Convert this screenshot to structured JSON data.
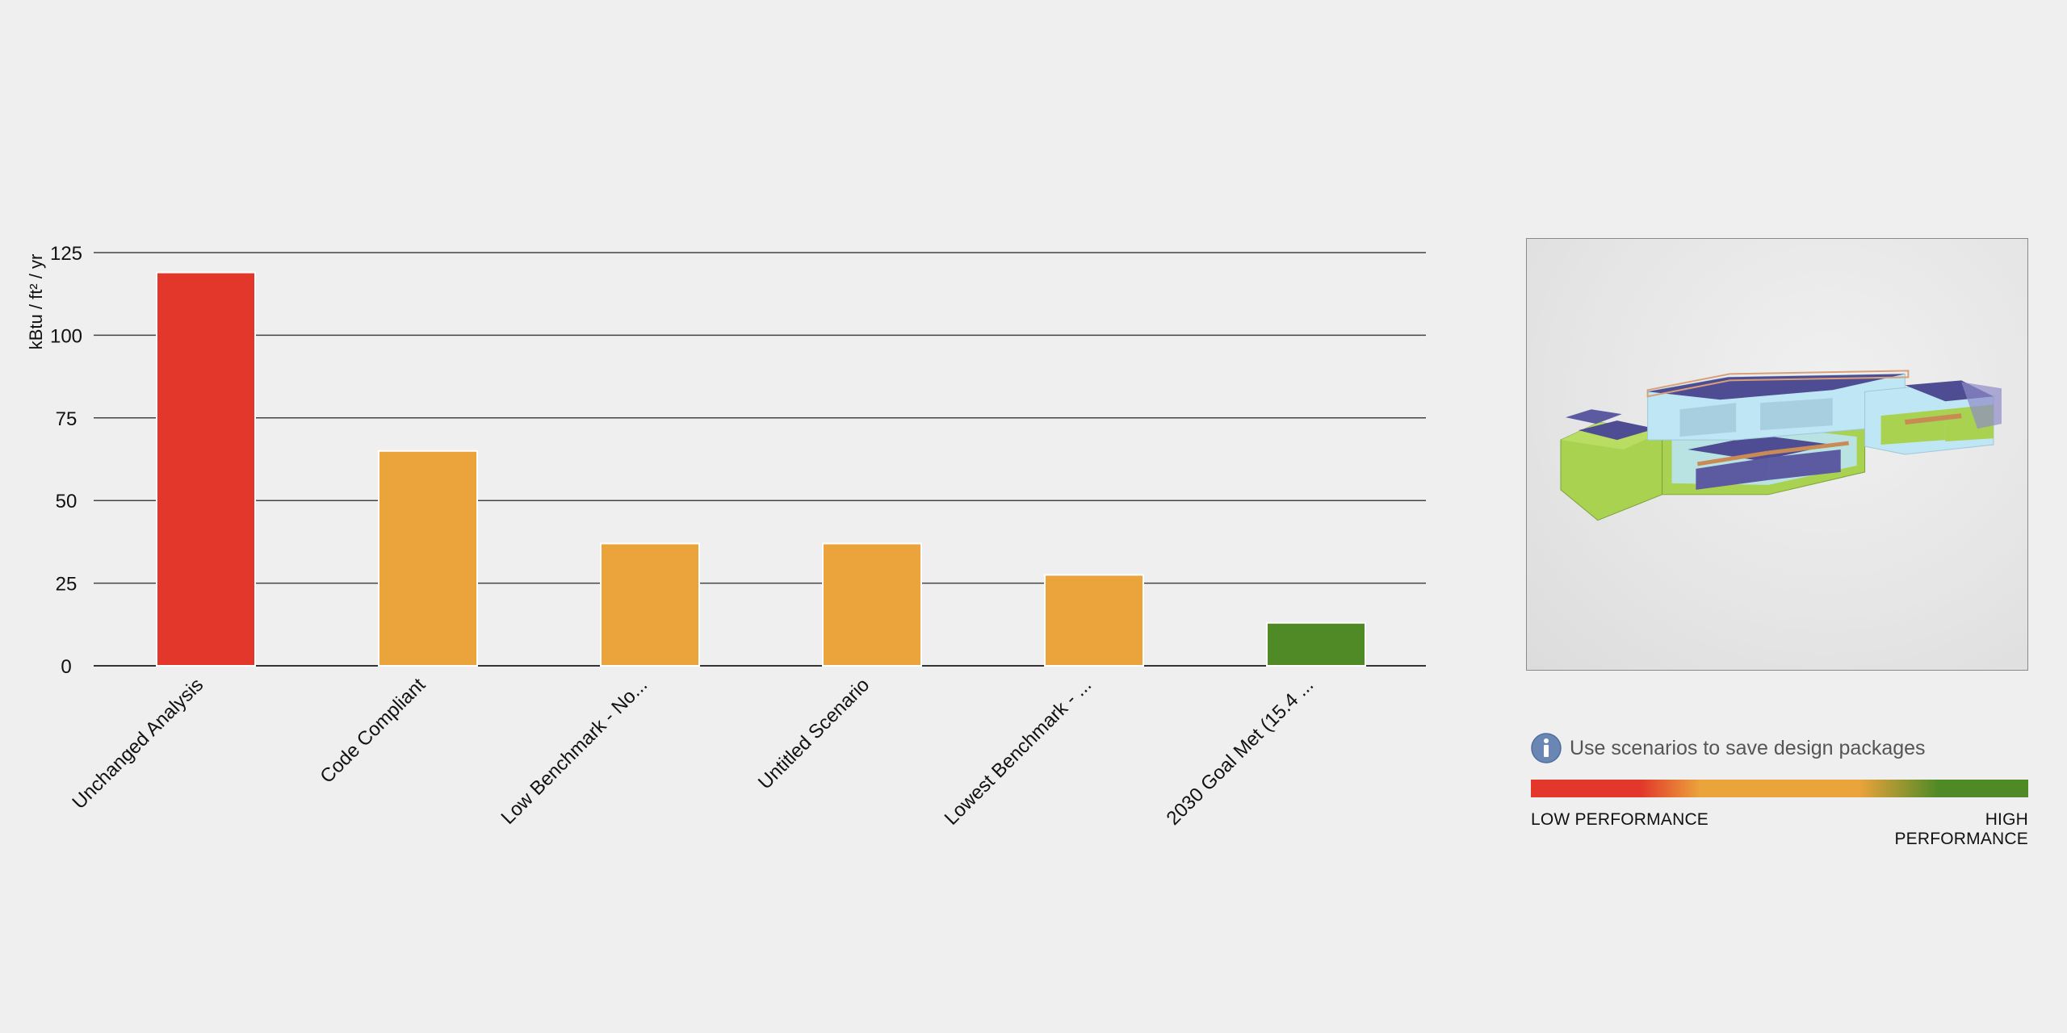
{
  "chart_data": {
    "type": "bar",
    "ylabel": "kBtu / ft² / yr",
    "xlabel": "",
    "ylim": [
      0,
      125
    ],
    "yticks": [
      0,
      25,
      50,
      75,
      100,
      125
    ],
    "grid": true,
    "categories": [
      "Unchanged Analysis",
      "Code Compliant",
      "Low Benchmark - No...",
      "Untitled Scenario",
      "Lowest Benchmark - ...",
      "2030 Goal Met (15.4 ..."
    ],
    "values": [
      119,
      65,
      37,
      37,
      27.5,
      13
    ],
    "bar_colors": [
      "#e2372a",
      "#eba33c",
      "#eba33c",
      "#eba33c",
      "#eba33c",
      "#4f8a26"
    ]
  },
  "hint": {
    "icon": "info-icon",
    "text": "Use scenarios to save design packages"
  },
  "legend": {
    "low_label": "LOW PERFORMANCE",
    "high_label": "HIGH PERFORMANCE",
    "low_color": "#e2372a",
    "mid_color": "#eba33c",
    "high_color": "#4f8a26"
  }
}
